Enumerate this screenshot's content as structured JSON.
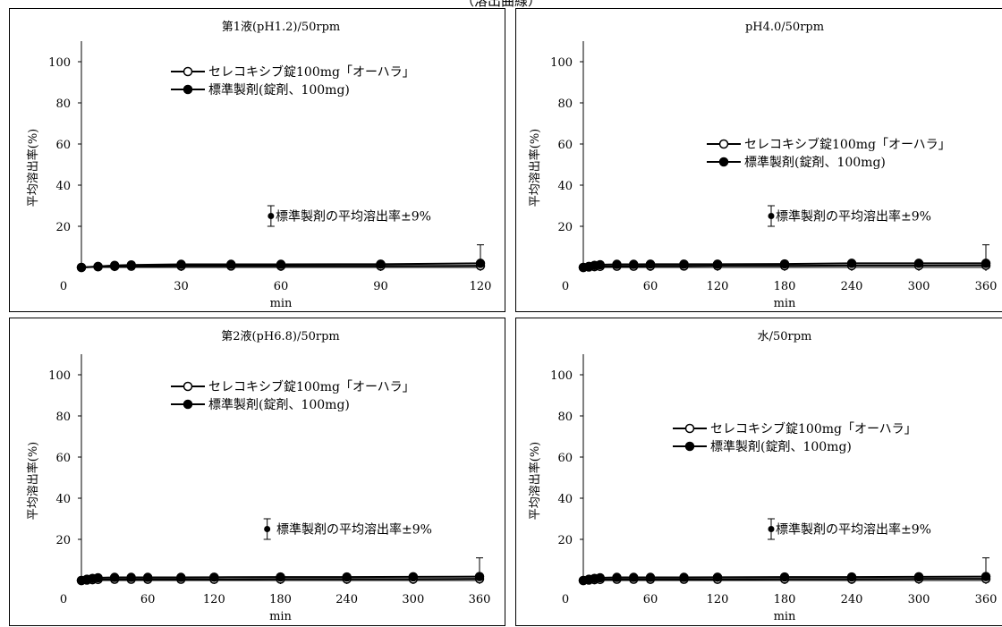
{
  "figure": {
    "title": "（溶出曲線）"
  },
  "chart_data": [
    {
      "type": "line",
      "title": "第1液(pH1.2)/50rpm",
      "xlabel": "min",
      "ylabel": "平均溶出率(%)",
      "xlim": [
        0,
        120
      ],
      "ylim": [
        0,
        110
      ],
      "xticks": [
        0,
        30,
        60,
        90,
        120
      ],
      "yticks": [
        20,
        40,
        60,
        80,
        100
      ],
      "legend_position": "upper-middle",
      "series": [
        {
          "name": "セレコキシブ錠100mg「オーハラ」",
          "marker": "open-circle",
          "x": [
            0,
            5,
            10,
            15,
            30,
            45,
            60,
            90,
            120
          ],
          "y": [
            0,
            0.3,
            0.5,
            0.6,
            0.7,
            0.7,
            0.7,
            0.7,
            0.8
          ]
        },
        {
          "name": "標準製剤(錠剤、100mg)",
          "marker": "filled-circle",
          "x": [
            0,
            5,
            10,
            15,
            30,
            45,
            60,
            90,
            120
          ],
          "y": [
            0,
            0.5,
            1,
            1.2,
            1.5,
            1.5,
            1.5,
            1.6,
            2
          ]
        }
      ],
      "error_bar": {
        "series": "標準製剤(錠剤、100mg)",
        "x": 120,
        "y": 2,
        "plus": 9
      },
      "annotation": {
        "text": "標準製剤の平均溶出率±9%",
        "x": 57,
        "y": 25,
        "half_height": 5
      }
    },
    {
      "type": "line",
      "title": "pH4.0/50rpm",
      "xlabel": "min",
      "ylabel": "平均溶出率(%)",
      "xlim": [
        0,
        360
      ],
      "ylim": [
        0,
        110
      ],
      "xticks": [
        0,
        60,
        120,
        180,
        240,
        300,
        360
      ],
      "yticks": [
        20,
        40,
        60,
        80,
        100
      ],
      "legend_position": "middle-right",
      "series": [
        {
          "name": "セレコキシブ錠100mg「オーハラ」",
          "marker": "open-circle",
          "x": [
            0,
            5,
            10,
            15,
            30,
            45,
            60,
            90,
            120,
            180,
            240,
            300,
            360
          ],
          "y": [
            0,
            0.2,
            0.4,
            0.5,
            0.6,
            0.6,
            0.7,
            0.7,
            0.8,
            0.8,
            0.9,
            0.9,
            1
          ]
        },
        {
          "name": "標準製剤(錠剤、100mg)",
          "marker": "filled-circle",
          "x": [
            0,
            5,
            10,
            15,
            30,
            45,
            60,
            90,
            120,
            180,
            240,
            300,
            360
          ],
          "y": [
            0,
            0.5,
            1,
            1.3,
            1.5,
            1.5,
            1.6,
            1.6,
            1.6,
            1.7,
            2,
            2,
            2
          ]
        }
      ],
      "error_bar": {
        "series": "標準製剤(錠剤、100mg)",
        "x": 360,
        "y": 2,
        "plus": 9
      },
      "annotation": {
        "text": "標準製剤の平均溶出率±9%",
        "x": 168,
        "y": 25,
        "half_height": 5
      }
    },
    {
      "type": "line",
      "title": "第2液(pH6.8)/50rpm",
      "xlabel": "min",
      "ylabel": "平均溶出率(%)",
      "xlim": [
        0,
        360
      ],
      "ylim": [
        0,
        110
      ],
      "xticks": [
        0,
        60,
        120,
        180,
        240,
        300,
        360
      ],
      "yticks": [
        20,
        40,
        60,
        80,
        100
      ],
      "legend_position": "upper-middle",
      "series": [
        {
          "name": "セレコキシブ錠100mg「オーハラ」",
          "marker": "open-circle",
          "x": [
            0,
            5,
            10,
            15,
            30,
            45,
            60,
            90,
            120,
            180,
            240,
            300,
            360
          ],
          "y": [
            0,
            0.2,
            0.4,
            0.5,
            0.6,
            0.6,
            0.6,
            0.6,
            0.6,
            0.7,
            0.7,
            0.7,
            0.8
          ]
        },
        {
          "name": "標準製剤(錠剤、100mg)",
          "marker": "filled-circle",
          "x": [
            0,
            5,
            10,
            15,
            30,
            45,
            60,
            90,
            120,
            180,
            240,
            300,
            360
          ],
          "y": [
            0,
            0.6,
            1,
            1.3,
            1.5,
            1.5,
            1.5,
            1.5,
            1.6,
            1.7,
            1.7,
            1.8,
            1.9
          ]
        }
      ],
      "error_bar": {
        "series": "標準製剤(錠剤、100mg)",
        "x": 360,
        "y": 2,
        "plus": 9
      },
      "annotation": {
        "text": "標準製剤の平均溶出率±9%",
        "x": 168,
        "y": 25,
        "half_height": 5
      }
    },
    {
      "type": "line",
      "title": "水/50rpm",
      "xlabel": "min",
      "ylabel": "平均溶出率(%)",
      "xlim": [
        0,
        360
      ],
      "ylim": [
        0,
        110
      ],
      "xticks": [
        0,
        60,
        120,
        180,
        240,
        300,
        360
      ],
      "yticks": [
        20,
        40,
        60,
        80,
        100
      ],
      "legend_position": "middle-right",
      "series": [
        {
          "name": "セレコキシブ錠100mg「オーハラ」",
          "marker": "open-circle",
          "x": [
            0,
            5,
            10,
            15,
            30,
            45,
            60,
            90,
            120,
            180,
            240,
            300,
            360
          ],
          "y": [
            0,
            0.2,
            0.4,
            0.5,
            0.6,
            0.6,
            0.6,
            0.6,
            0.6,
            0.7,
            0.7,
            0.8,
            0.8
          ]
        },
        {
          "name": "標準製剤(錠剤、100mg)",
          "marker": "filled-circle",
          "x": [
            0,
            5,
            10,
            15,
            30,
            45,
            60,
            90,
            120,
            180,
            240,
            300,
            360
          ],
          "y": [
            0,
            0.6,
            1,
            1.3,
            1.5,
            1.5,
            1.5,
            1.5,
            1.6,
            1.7,
            1.7,
            1.8,
            1.9
          ]
        }
      ],
      "error_bar": {
        "series": "標準製剤(錠剤、100mg)",
        "x": 360,
        "y": 2,
        "plus": 9
      },
      "annotation": {
        "text": "標準製剤の平均溶出率±9%",
        "x": 168,
        "y": 25,
        "half_height": 5
      }
    }
  ]
}
